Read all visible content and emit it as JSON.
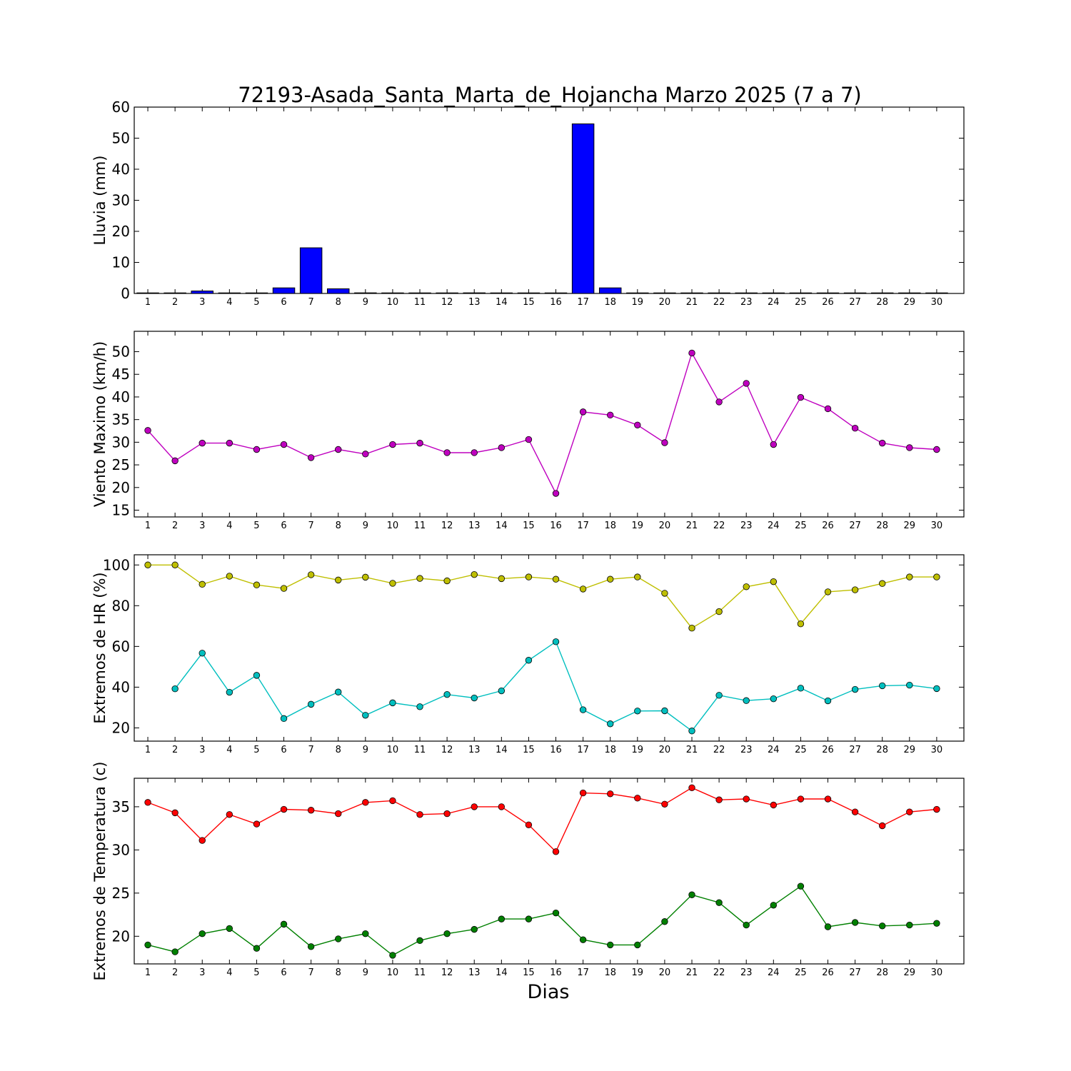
{
  "figure": {
    "title": "72193-Asada_Santa_Marta_de_Hojancha Marzo 2025  (7 a 7)",
    "xlabel": "Dias"
  },
  "chart_data": [
    {
      "type": "bar",
      "ylabel": "Lluvia (mm)",
      "categories": [
        1,
        2,
        3,
        4,
        5,
        6,
        7,
        8,
        9,
        10,
        11,
        12,
        13,
        14,
        15,
        16,
        17,
        18,
        19,
        20,
        21,
        22,
        23,
        24,
        25,
        26,
        27,
        28,
        29,
        30
      ],
      "series": [
        {
          "color": "#0000ff",
          "values": [
            0,
            0,
            0.8,
            0,
            0,
            1.8,
            14.7,
            1.5,
            0.2,
            0,
            0,
            0,
            0.2,
            0,
            0,
            0,
            54.6,
            1.8,
            0,
            0,
            0,
            0,
            0,
            0,
            0,
            0,
            0,
            0,
            0,
            0
          ]
        }
      ],
      "ylim": [
        0,
        60
      ],
      "yticks": [
        0,
        10,
        20,
        30,
        40,
        50,
        60
      ],
      "grid": false
    },
    {
      "type": "line",
      "ylabel": "Viento Maximo (km/h)",
      "x": [
        1,
        2,
        3,
        4,
        5,
        6,
        7,
        8,
        9,
        10,
        11,
        12,
        13,
        14,
        15,
        16,
        17,
        18,
        19,
        20,
        21,
        22,
        23,
        24,
        25,
        26,
        27,
        28,
        29,
        30
      ],
      "series": [
        {
          "color": "#bf00bf",
          "values": [
            32.6,
            25.9,
            29.8,
            29.8,
            28.4,
            29.5,
            26.6,
            28.4,
            27.4,
            29.5,
            29.8,
            27.7,
            27.7,
            28.8,
            30.6,
            18.7,
            36.7,
            36.0,
            33.8,
            29.9,
            49.7,
            38.9,
            43.0,
            29.5,
            39.9,
            37.4,
            33.1,
            29.8,
            28.8,
            28.4
          ]
        }
      ],
      "ylim": [
        13.5,
        54.5
      ],
      "yticks": [
        15,
        20,
        25,
        30,
        35,
        40,
        45,
        50
      ],
      "grid": false
    },
    {
      "type": "line",
      "ylabel": "Extremos de HR (%)",
      "x": [
        1,
        2,
        3,
        4,
        5,
        6,
        7,
        8,
        9,
        10,
        11,
        12,
        13,
        14,
        15,
        16,
        17,
        18,
        19,
        20,
        21,
        22,
        23,
        24,
        25,
        26,
        27,
        28,
        29,
        30
      ],
      "series": [
        {
          "color": "#bfbf00",
          "values": [
            100,
            100,
            90.5,
            94.5,
            90.2,
            88.5,
            95.2,
            92.6,
            94.0,
            91.0,
            93.4,
            92.2,
            95.3,
            93.3,
            94.1,
            93.0,
            88.2,
            93.0,
            94.1,
            86.1,
            69.0,
            77.1,
            89.3,
            91.8,
            71.1,
            86.8,
            87.8,
            90.9,
            94.1,
            94.1
          ]
        },
        {
          "color": "#00bfbf",
          "values": [
            null,
            39.2,
            56.7,
            37.5,
            45.8,
            24.6,
            31.6,
            37.6,
            26.2,
            32.3,
            30.4,
            36.4,
            34.7,
            38.2,
            53.2,
            62.3,
            28.9,
            22.0,
            28.3,
            28.4,
            18.5,
            36.0,
            33.4,
            34.3,
            39.5,
            33.3,
            38.9,
            40.7,
            41.0,
            39.3
          ]
        }
      ],
      "ylim": [
        13.5,
        105
      ],
      "yticks": [
        20,
        40,
        60,
        80,
        100
      ],
      "grid": false
    },
    {
      "type": "line",
      "ylabel": "Extremos de Temperatura (c)",
      "x": [
        1,
        2,
        3,
        4,
        5,
        6,
        7,
        8,
        9,
        10,
        11,
        12,
        13,
        14,
        15,
        16,
        17,
        18,
        19,
        20,
        21,
        22,
        23,
        24,
        25,
        26,
        27,
        28,
        29,
        30
      ],
      "series": [
        {
          "color": "#ff0000",
          "values": [
            35.5,
            34.3,
            31.1,
            34.1,
            33.0,
            34.7,
            34.6,
            34.2,
            35.5,
            35.7,
            34.1,
            34.2,
            35.0,
            35.0,
            32.9,
            29.8,
            36.6,
            36.5,
            36.0,
            35.3,
            37.2,
            35.8,
            35.9,
            35.2,
            35.9,
            35.9,
            34.4,
            32.8,
            34.4,
            34.7
          ]
        },
        {
          "color": "#008000",
          "values": [
            19.0,
            18.2,
            20.3,
            20.9,
            18.6,
            21.4,
            18.8,
            19.7,
            20.3,
            17.8,
            19.5,
            20.3,
            20.8,
            22.0,
            22.0,
            22.7,
            19.6,
            19.0,
            19.0,
            21.7,
            24.8,
            23.9,
            21.3,
            23.6,
            25.8,
            21.1,
            21.6,
            21.2,
            21.3,
            21.5
          ]
        }
      ],
      "ylim": [
        16.8,
        38.3
      ],
      "yticks": [
        20,
        25,
        30,
        35
      ],
      "grid": false
    }
  ]
}
